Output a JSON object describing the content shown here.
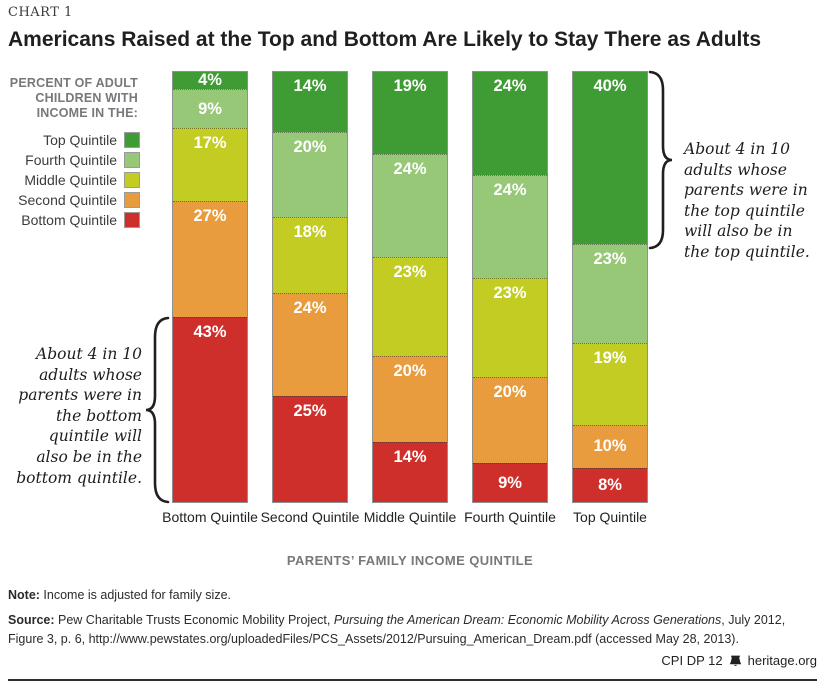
{
  "page": {
    "kicker": "CHART 1",
    "title": "Americans Raised at the Top and Bottom Are Likely to Stay There as Adults"
  },
  "legend": {
    "header": "PERCENT OF ADULT\nCHILDREN WITH\nINCOME IN THE:",
    "items": [
      {
        "label": "Top Quintile",
        "color": "#3F9C35"
      },
      {
        "label": "Fourth Quintile",
        "color": "#96C878"
      },
      {
        "label": "Middle Quintile",
        "color": "#C2CC22"
      },
      {
        "label": "Second Quintile",
        "color": "#E89C3D"
      },
      {
        "label": "Bottom Quintile",
        "color": "#CE2F2B"
      }
    ]
  },
  "chart_data": {
    "type": "bar",
    "stacked": true,
    "title": "Americans Raised at the Top and Bottom Are Likely to Stay There as Adults",
    "xlabel": "PARENTS' FAMILY INCOME QUINTILE",
    "ylabel": "Percent of adult children with income in the quintile",
    "value_suffix": "%",
    "categories": [
      "Bottom Quintile",
      "Second Quintile",
      "Middle Quintile",
      "Fourth Quintile",
      "Top Quintile"
    ],
    "series": [
      {
        "name": "Top Quintile",
        "color": "#3F9C35",
        "values": [
          4,
          14,
          19,
          24,
          40
        ]
      },
      {
        "name": "Fourth Quintile",
        "color": "#96C878",
        "values": [
          9,
          20,
          24,
          24,
          23
        ]
      },
      {
        "name": "Middle Quintile",
        "color": "#C2CC22",
        "values": [
          17,
          18,
          23,
          23,
          19
        ]
      },
      {
        "name": "Second Quintile",
        "color": "#E89C3D",
        "values": [
          27,
          24,
          20,
          20,
          10
        ]
      },
      {
        "name": "Bottom Quintile",
        "color": "#CE2F2B",
        "values": [
          43,
          25,
          14,
          9,
          8
        ]
      }
    ],
    "legend_position": "left",
    "grid": false,
    "ylim": [
      0,
      100
    ]
  },
  "annotations": {
    "right": "About 4 in 10\nadults whose\nparents were in\nthe top quintile\nwill also be in\nthe top quintile.",
    "left": "About 4 in 10\nadults whose\nparents were in\nthe bottom\nquintile will\nalso be in the\nbottom quintile."
  },
  "axis": {
    "x_title": "PARENTS’ FAMILY INCOME QUINTILE"
  },
  "note": {
    "label": "Note:",
    "text": " Income is adjusted for family size."
  },
  "source": {
    "label": "Source:",
    "prefix": " Pew Charitable Trusts Economic Mobility Project, ",
    "italic": "Pursuing the American Dream: Economic Mobility Across Generations",
    "suffix": ", July 2012, Figure 3, p. 6, http://www.pewstates.org/uploadedFiles/PCS_Assets/2012/Pursuing_American_Dream.pdf (accessed May 28, 2013)."
  },
  "footer": {
    "code": "CPI DP 12",
    "site": "heritage.org"
  },
  "colors": {
    "top_quintile": "#3F9C35",
    "fourth_quintile": "#96C878",
    "middle_quintile": "#C2CC22",
    "second_quintile": "#E89C3D",
    "bottom_quintile": "#CE2F2B",
    "gray_text": "#77787B",
    "ink": "#231F20"
  }
}
